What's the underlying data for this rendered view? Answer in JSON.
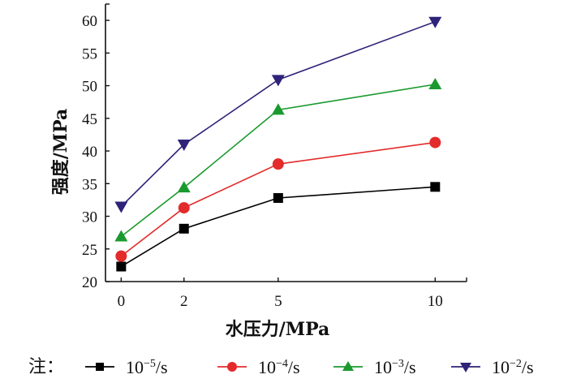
{
  "chart_data": {
    "type": "line",
    "title": "",
    "xlabel": "水压力/MPa",
    "ylabel": "强度/MPa",
    "x": [
      0,
      2,
      5,
      10
    ],
    "x_tick_labels": [
      "0",
      "2",
      "5",
      "10"
    ],
    "y_ticks": [
      20,
      25,
      30,
      35,
      40,
      45,
      50,
      55,
      60
    ],
    "y_tick_labels": [
      "20",
      "25",
      "30",
      "35",
      "40",
      "45",
      "50",
      "55",
      "60"
    ],
    "xlim": [
      -0.5,
      11.0
    ],
    "ylim": [
      20,
      62.5
    ],
    "grid": false,
    "legend_placement": "bottom",
    "legend_prefix": "注：",
    "series": [
      {
        "name": "10⁻⁵/s",
        "base": "10",
        "exp": "−5",
        "unit": "/s",
        "color": "#000000",
        "marker": "square",
        "values": [
          22.3,
          28.1,
          32.8,
          34.5
        ]
      },
      {
        "name": "10⁻⁴/s",
        "base": "10",
        "exp": "−4",
        "unit": "/s",
        "color": "#e32b2b",
        "marker": "circle",
        "values": [
          23.9,
          31.3,
          38.0,
          41.3
        ]
      },
      {
        "name": "10⁻³/s",
        "base": "10",
        "exp": "−3",
        "unit": "/s",
        "color": "#1a9a2e",
        "marker": "triangle-up",
        "values": [
          26.9,
          34.4,
          46.3,
          50.2
        ]
      },
      {
        "name": "10⁻²/s",
        "base": "10",
        "exp": "−2",
        "unit": "/s",
        "color": "#2e2378",
        "marker": "triangle-down",
        "values": [
          31.5,
          41.0,
          50.9,
          59.8
        ]
      }
    ]
  }
}
